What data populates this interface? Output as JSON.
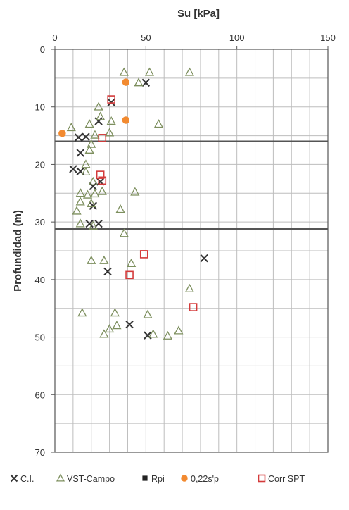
{
  "chart_data": {
    "type": "scatter",
    "title": "",
    "xlabel": "Su [kPa]",
    "ylabel": "Profundidad (m)",
    "x_axis_position": "top",
    "y_axis_inverted": true,
    "xlim": [
      0,
      150
    ],
    "ylim": [
      0,
      70
    ],
    "x_ticks": [
      0,
      50,
      100,
      150
    ],
    "y_ticks": [
      0,
      10,
      20,
      30,
      40,
      50,
      60,
      70
    ],
    "grid": true,
    "legend_position": "bottom",
    "reference_lines": [
      {
        "depth": 16
      },
      {
        "depth": 31.2
      }
    ],
    "series": [
      {
        "name": "C.I.",
        "marker": "x",
        "color": "#333333",
        "points": [
          [
            50,
            5.8
          ],
          [
            31,
            9.2
          ],
          [
            24,
            12.5
          ],
          [
            13,
            15.3
          ],
          [
            17,
            15.2
          ],
          [
            14,
            18
          ],
          [
            10,
            20.8
          ],
          [
            14,
            21.2
          ],
          [
            21,
            23.8
          ],
          [
            25,
            23
          ],
          [
            21,
            27.2
          ],
          [
            19,
            30.3
          ],
          [
            24,
            30.3
          ],
          [
            29,
            38.6
          ],
          [
            82,
            36.3
          ],
          [
            41,
            47.8
          ],
          [
            51,
            49.7
          ]
        ]
      },
      {
        "name": "VST-Campo",
        "marker": "triangle",
        "color": "#7d8f5e",
        "points": [
          [
            38,
            4
          ],
          [
            52,
            4
          ],
          [
            74,
            4
          ],
          [
            46,
            5.8
          ],
          [
            24,
            10
          ],
          [
            25,
            11.7
          ],
          [
            19,
            13
          ],
          [
            9,
            13.6
          ],
          [
            57,
            13
          ],
          [
            30,
            14.5
          ],
          [
            31,
            12.5
          ],
          [
            22,
            14.9
          ],
          [
            20,
            16.5
          ],
          [
            19,
            17.5
          ],
          [
            17,
            20
          ],
          [
            17,
            21.3
          ],
          [
            21,
            23
          ],
          [
            14,
            25
          ],
          [
            18,
            25.3
          ],
          [
            22,
            25.1
          ],
          [
            26,
            24.7
          ],
          [
            44,
            24.8
          ],
          [
            14,
            26.5
          ],
          [
            20,
            26.8
          ],
          [
            12,
            28.1
          ],
          [
            36,
            27.8
          ],
          [
            14,
            30.3
          ],
          [
            21,
            30.7
          ],
          [
            38,
            32
          ],
          [
            20,
            36.7
          ],
          [
            27,
            36.7
          ],
          [
            42,
            37.2
          ],
          [
            74,
            41.6
          ],
          [
            15,
            45.8
          ],
          [
            33,
            45.8
          ],
          [
            51,
            46.1
          ],
          [
            34,
            48
          ],
          [
            30,
            48.6
          ],
          [
            27,
            49.5
          ],
          [
            54,
            49.5
          ],
          [
            62,
            49.8
          ],
          [
            68,
            48.9
          ]
        ]
      },
      {
        "name": "Rpi",
        "marker": "square-filled",
        "color": "#222222",
        "points": []
      },
      {
        "name": "0,22s'p",
        "marker": "circle-filled",
        "color": "#f28a30",
        "points": [
          [
            39,
            5.7
          ],
          [
            4,
            14.6
          ],
          [
            39,
            12.3
          ]
        ]
      },
      {
        "name": "Corr SPT",
        "marker": "square-open",
        "color": "#d43a3a",
        "points": [
          [
            31,
            8.7
          ],
          [
            26,
            15.4
          ],
          [
            25,
            21.8
          ],
          [
            26,
            22.8
          ],
          [
            49,
            35.6
          ],
          [
            41,
            39.2
          ],
          [
            76,
            44.8
          ]
        ]
      }
    ]
  }
}
